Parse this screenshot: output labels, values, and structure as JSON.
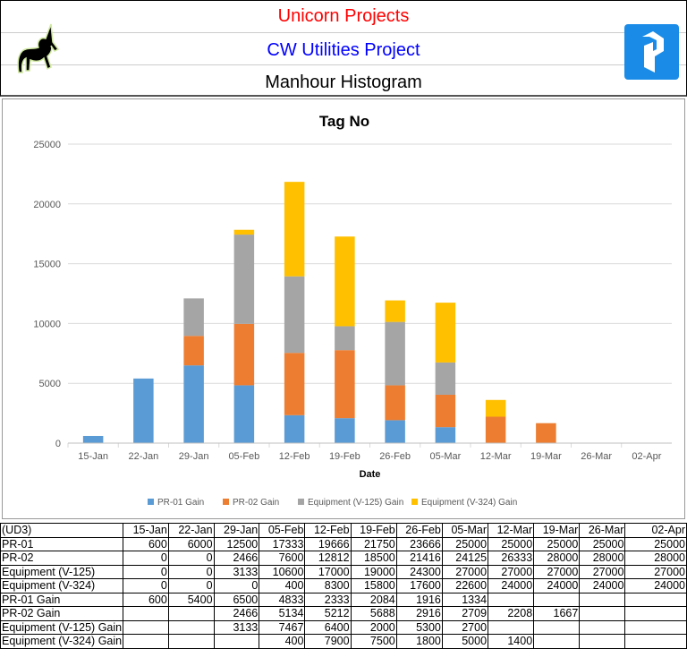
{
  "header": {
    "company": "Unicorn Projects",
    "project": "CW Utilities Project",
    "report": "Manhour Histogram",
    "company_color": "#ff0000",
    "project_color": "#0000ff"
  },
  "chart_data": {
    "type": "bar",
    "stacked": true,
    "title": "Tag No",
    "xlabel": "Date",
    "ylabel": "",
    "ylim": [
      0,
      25000
    ],
    "yticks": [
      0,
      5000,
      10000,
      15000,
      20000,
      25000
    ],
    "grid": true,
    "legend": "bottom",
    "categories": [
      "15-Jan",
      "22-Jan",
      "29-Jan",
      "05-Feb",
      "12-Feb",
      "19-Feb",
      "26-Feb",
      "05-Mar",
      "12-Mar",
      "19-Mar",
      "26-Mar",
      "02-Apr"
    ],
    "series": [
      {
        "name": "PR-01 Gain",
        "color": "#5b9bd5",
        "values": [
          600,
          5400,
          6500,
          4833,
          2333,
          2084,
          1916,
          1334,
          0,
          0,
          0,
          0
        ]
      },
      {
        "name": "PR-02 Gain",
        "color": "#ed7d31",
        "values": [
          0,
          0,
          2466,
          5134,
          5212,
          5688,
          2916,
          2709,
          2208,
          1667,
          0,
          0
        ]
      },
      {
        "name": "Equipment (V-125) Gain",
        "color": "#a5a5a5",
        "values": [
          0,
          0,
          3133,
          7467,
          6400,
          2000,
          5300,
          2700,
          0,
          0,
          0,
          0
        ]
      },
      {
        "name": "Equipment (V-324) Gain",
        "color": "#ffc000",
        "values": [
          0,
          0,
          0,
          400,
          7900,
          7500,
          1800,
          5000,
          1400,
          0,
          0,
          0
        ]
      }
    ]
  },
  "table": {
    "header": [
      "(UD3)",
      "15-Jan",
      "22-Jan",
      "29-Jan",
      "05-Feb",
      "12-Feb",
      "19-Feb",
      "26-Feb",
      "05-Mar",
      "12-Mar",
      "19-Mar",
      "26-Mar",
      "02-Apr"
    ],
    "rows": [
      [
        "PR-01",
        "600",
        "6000",
        "12500",
        "17333",
        "19666",
        "21750",
        "23666",
        "25000",
        "25000",
        "25000",
        "25000",
        "25000"
      ],
      [
        "PR-02",
        "0",
        "0",
        "2466",
        "7600",
        "12812",
        "18500",
        "21416",
        "24125",
        "26333",
        "28000",
        "28000",
        "28000"
      ],
      [
        "Equipment (V-125)",
        "0",
        "0",
        "3133",
        "10600",
        "17000",
        "19000",
        "24300",
        "27000",
        "27000",
        "27000",
        "27000",
        "27000"
      ],
      [
        "Equipment (V-324)",
        "0",
        "0",
        "0",
        "400",
        "8300",
        "15800",
        "17600",
        "22600",
        "24000",
        "24000",
        "24000",
        "24000"
      ],
      [
        "PR-01 Gain",
        "600",
        "5400",
        "6500",
        "4833",
        "2333",
        "2084",
        "1916",
        "1334",
        "",
        "",
        "",
        ""
      ],
      [
        "PR-02 Gain",
        "",
        "",
        "2466",
        "5134",
        "5212",
        "5688",
        "2916",
        "2709",
        "2208",
        "1667",
        "",
        ""
      ],
      [
        "Equipment (V-125) Gain",
        "",
        "",
        "3133",
        "7467",
        "6400",
        "2000",
        "5300",
        "2700",
        "",
        "",
        "",
        ""
      ],
      [
        "Equipment (V-324) Gain",
        "",
        "",
        "",
        "400",
        "7900",
        "7500",
        "1800",
        "5000",
        "1400",
        "",
        "",
        ""
      ]
    ]
  }
}
